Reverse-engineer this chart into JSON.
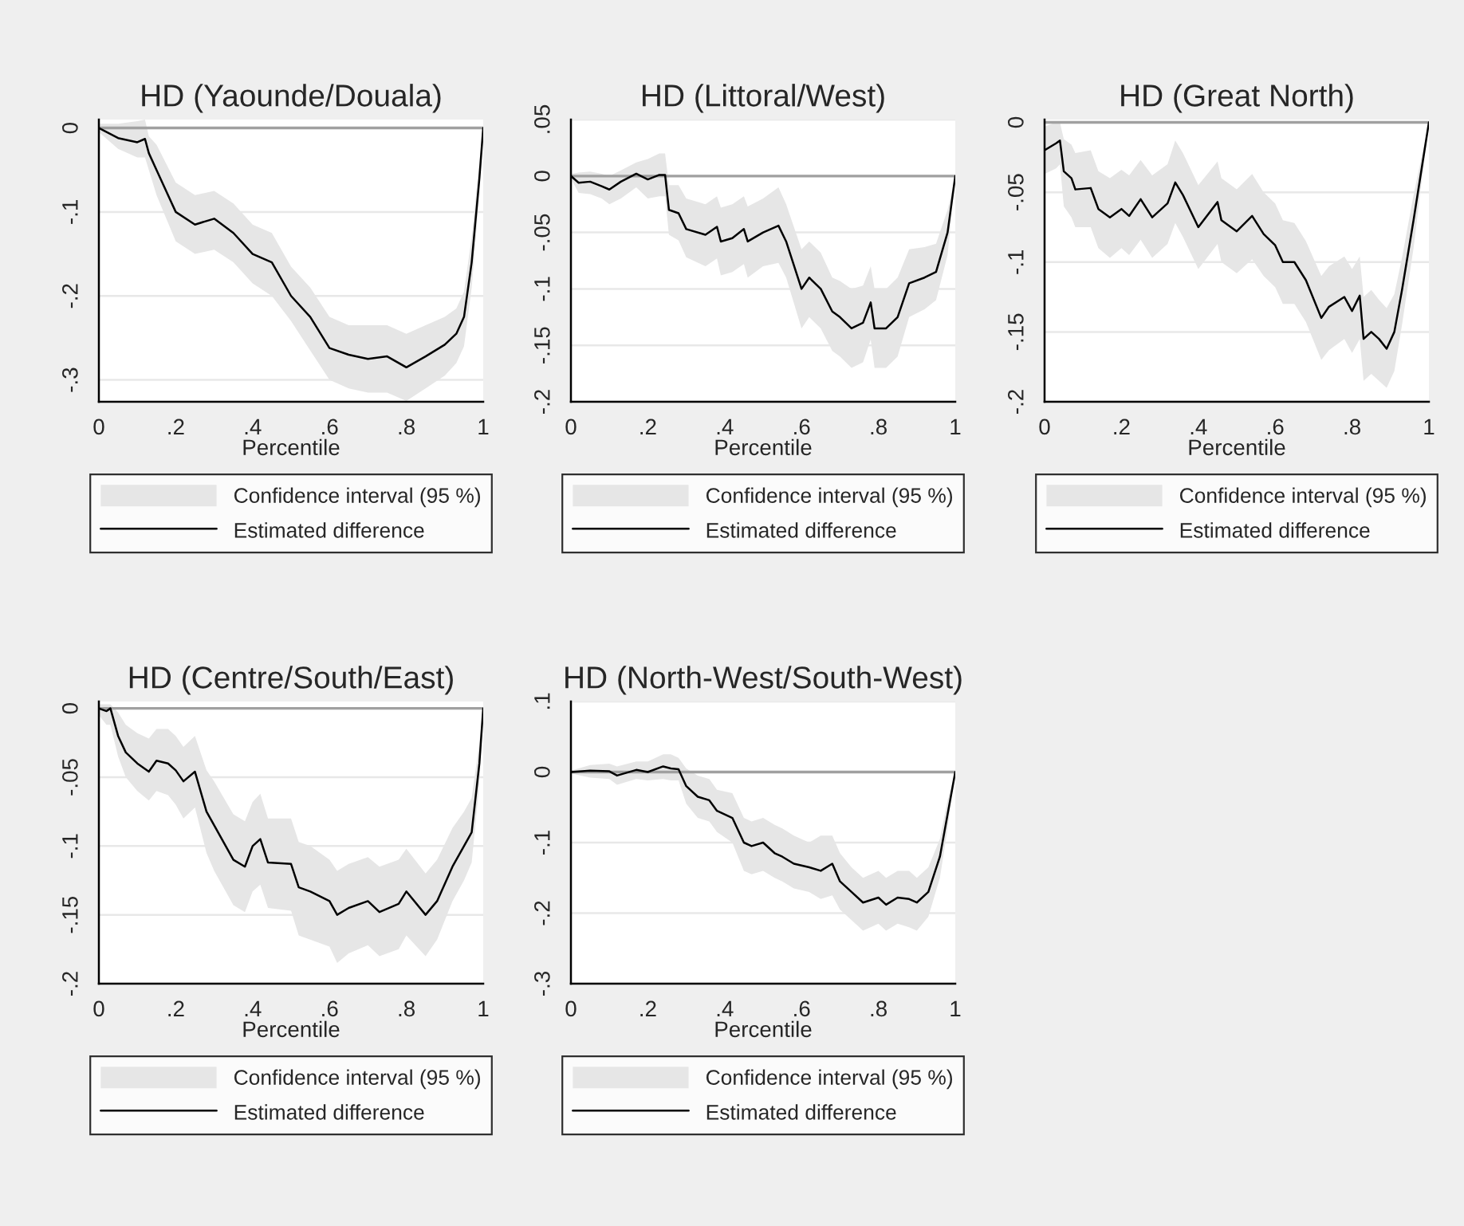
{
  "chart_data": [
    {
      "type": "line",
      "title": "HD (Yaounde/Douala)",
      "xlabel": "Percentile",
      "xlim": [
        0,
        1
      ],
      "ylim": [
        -0.326,
        0.01
      ],
      "xticks": [
        0,
        {
          "value": 0.2,
          "label": ".2"
        },
        {
          "value": 0.4,
          "label": ".4"
        },
        {
          "value": 0.6,
          "label": ".6"
        },
        {
          "value": 0.8,
          "label": ".8"
        },
        1
      ],
      "yticks": [
        0,
        {
          "value": -0.1,
          "label": "-.1"
        },
        {
          "value": -0.2,
          "label": "-.2"
        },
        {
          "value": -0.3,
          "label": "-.3"
        }
      ],
      "grid": "y",
      "legend": "bottom",
      "ref_lines": [
        {
          "axis": "y",
          "value": 0,
          "color": "#a0a0a0"
        }
      ],
      "annotations": [
        "Confidence interval (95 %)"
      ],
      "x": [
        0,
        0.05,
        0.1,
        0.12,
        0.13,
        0.15,
        0.2,
        0.25,
        0.3,
        0.35,
        0.4,
        0.45,
        0.5,
        0.55,
        0.6,
        0.65,
        0.7,
        0.75,
        0.8,
        0.85,
        0.9,
        0.93,
        0.95,
        0.97,
        0.99,
        1
      ],
      "series": [
        {
          "name": "Estimated difference",
          "color": "#000000",
          "upper": [
            0.005,
            0.005,
            0.008,
            0.01,
            -0.01,
            -0.02,
            -0.065,
            -0.08,
            -0.075,
            -0.09,
            -0.115,
            -0.125,
            -0.165,
            -0.19,
            -0.225,
            -0.235,
            -0.235,
            -0.235,
            -0.245,
            -0.235,
            -0.225,
            -0.215,
            -0.195,
            -0.13,
            -0.04,
            0
          ],
          "lower": [
            -0.005,
            -0.025,
            -0.035,
            -0.035,
            -0.05,
            -0.08,
            -0.135,
            -0.15,
            -0.145,
            -0.16,
            -0.185,
            -0.2,
            -0.23,
            -0.265,
            -0.3,
            -0.31,
            -0.315,
            -0.315,
            -0.325,
            -0.31,
            -0.295,
            -0.28,
            -0.26,
            -0.19,
            -0.08,
            0
          ],
          "values": [
            0,
            -0.012,
            -0.017,
            -0.013,
            -0.03,
            -0.05,
            -0.1,
            -0.115,
            -0.108,
            -0.125,
            -0.15,
            -0.16,
            -0.2,
            -0.225,
            -0.262,
            -0.27,
            -0.275,
            -0.272,
            -0.285,
            -0.272,
            -0.258,
            -0.245,
            -0.225,
            -0.16,
            -0.06,
            0
          ]
        }
      ]
    },
    {
      "type": "line",
      "title": "HD (Littoral/West)",
      "xlabel": "Percentile",
      "xlim": [
        0,
        1
      ],
      "ylim": [
        -0.2,
        0.05
      ],
      "xticks": [
        0,
        {
          "value": 0.2,
          "label": ".2"
        },
        {
          "value": 0.4,
          "label": ".4"
        },
        {
          "value": 0.6,
          "label": ".6"
        },
        {
          "value": 0.8,
          "label": ".8"
        },
        1
      ],
      "yticks": [
        {
          "value": 0.05,
          "label": ".05"
        },
        0,
        {
          "value": -0.05,
          "label": "-.05"
        },
        {
          "value": -0.1,
          "label": "-.1"
        },
        {
          "value": -0.15,
          "label": "-.15"
        },
        {
          "value": -0.2,
          "label": "-.2"
        }
      ],
      "grid": "y",
      "legend": "bottom",
      "ref_lines": [
        {
          "axis": "y",
          "value": 0,
          "color": "#a0a0a0"
        }
      ],
      "annotations": [
        "Confidence interval (95 %)"
      ],
      "x": [
        0,
        0.02,
        0.05,
        0.08,
        0.1,
        0.13,
        0.17,
        0.2,
        0.23,
        0.245,
        0.255,
        0.28,
        0.3,
        0.35,
        0.38,
        0.39,
        0.42,
        0.45,
        0.46,
        0.5,
        0.54,
        0.56,
        0.6,
        0.62,
        0.65,
        0.68,
        0.7,
        0.73,
        0.76,
        0.78,
        0.79,
        0.82,
        0.85,
        0.88,
        0.92,
        0.95,
        0.98,
        1
      ],
      "series": [
        {
          "name": "Estimated difference",
          "color": "#000000",
          "upper": [
            0.002,
            0.003,
            0.004,
            0.002,
            0.0,
            0.005,
            0.012,
            0.015,
            0.02,
            0.02,
            -0.008,
            -0.008,
            -0.02,
            -0.025,
            -0.018,
            -0.028,
            -0.025,
            -0.018,
            -0.027,
            -0.02,
            -0.01,
            -0.025,
            -0.065,
            -0.058,
            -0.068,
            -0.09,
            -0.093,
            -0.1,
            -0.097,
            -0.08,
            -0.1,
            -0.1,
            -0.09,
            -0.065,
            -0.063,
            -0.06,
            -0.03,
            0
          ],
          "lower": [
            -0.002,
            -0.015,
            -0.016,
            -0.02,
            -0.025,
            -0.02,
            -0.01,
            -0.02,
            -0.018,
            -0.018,
            -0.052,
            -0.057,
            -0.072,
            -0.08,
            -0.073,
            -0.088,
            -0.085,
            -0.078,
            -0.09,
            -0.08,
            -0.077,
            -0.09,
            -0.135,
            -0.125,
            -0.135,
            -0.155,
            -0.16,
            -0.17,
            -0.165,
            -0.145,
            -0.17,
            -0.17,
            -0.16,
            -0.125,
            -0.118,
            -0.11,
            -0.07,
            0
          ],
          "values": [
            0,
            -0.006,
            -0.005,
            -0.009,
            -0.012,
            -0.005,
            0.002,
            -0.003,
            0.001,
            0.001,
            -0.03,
            -0.033,
            -0.047,
            -0.052,
            -0.045,
            -0.058,
            -0.055,
            -0.047,
            -0.058,
            -0.05,
            -0.044,
            -0.058,
            -0.1,
            -0.09,
            -0.1,
            -0.12,
            -0.125,
            -0.135,
            -0.13,
            -0.112,
            -0.135,
            -0.135,
            -0.125,
            -0.095,
            -0.09,
            -0.085,
            -0.05,
            0
          ]
        }
      ]
    },
    {
      "type": "line",
      "title": "HD (Great North)",
      "xlabel": "Percentile",
      "xlim": [
        0,
        1
      ],
      "ylim": [
        -0.2,
        0.002
      ],
      "xticks": [
        0,
        {
          "value": 0.2,
          "label": ".2"
        },
        {
          "value": 0.4,
          "label": ".4"
        },
        {
          "value": 0.6,
          "label": ".6"
        },
        {
          "value": 0.8,
          "label": ".8"
        },
        1
      ],
      "yticks": [
        0,
        {
          "value": -0.05,
          "label": "-.05"
        },
        {
          "value": -0.1,
          "label": "-.1"
        },
        {
          "value": -0.15,
          "label": "-.15"
        },
        {
          "value": -0.2,
          "label": "-.2"
        }
      ],
      "grid": "y",
      "legend": "bottom",
      "ref_lines": [
        {
          "axis": "y",
          "value": 0,
          "color": "#a0a0a0"
        }
      ],
      "annotations": [
        "Confidence interval (95 %)"
      ],
      "x": [
        0,
        0.03,
        0.04,
        0.05,
        0.07,
        0.08,
        0.12,
        0.14,
        0.17,
        0.2,
        0.22,
        0.25,
        0.28,
        0.32,
        0.34,
        0.36,
        0.4,
        0.45,
        0.46,
        0.5,
        0.54,
        0.57,
        0.6,
        0.62,
        0.65,
        0.68,
        0.72,
        0.74,
        0.78,
        0.8,
        0.82,
        0.83,
        0.85,
        0.87,
        0.89,
        0.91,
        0.93,
        0.96,
        1
      ],
      "series": [
        {
          "name": "Estimated difference",
          "color": "#000000",
          "upper": [
            -0.003,
            0,
            0,
            -0.012,
            -0.016,
            -0.022,
            -0.02,
            -0.035,
            -0.04,
            -0.034,
            -0.038,
            -0.027,
            -0.038,
            -0.03,
            -0.013,
            -0.022,
            -0.045,
            -0.028,
            -0.04,
            -0.048,
            -0.037,
            -0.05,
            -0.058,
            -0.07,
            -0.072,
            -0.085,
            -0.11,
            -0.103,
            -0.096,
            -0.105,
            -0.096,
            -0.125,
            -0.12,
            -0.127,
            -0.133,
            -0.123,
            -0.097,
            -0.052,
            0
          ],
          "lower": [
            -0.037,
            -0.033,
            -0.03,
            -0.06,
            -0.068,
            -0.075,
            -0.075,
            -0.09,
            -0.097,
            -0.09,
            -0.095,
            -0.084,
            -0.097,
            -0.087,
            -0.072,
            -0.082,
            -0.105,
            -0.087,
            -0.1,
            -0.108,
            -0.098,
            -0.11,
            -0.118,
            -0.13,
            -0.13,
            -0.143,
            -0.17,
            -0.163,
            -0.155,
            -0.165,
            -0.155,
            -0.185,
            -0.18,
            -0.185,
            -0.19,
            -0.178,
            -0.145,
            -0.09,
            0
          ],
          "values": [
            -0.02,
            -0.015,
            -0.013,
            -0.035,
            -0.04,
            -0.048,
            -0.047,
            -0.062,
            -0.068,
            -0.062,
            -0.067,
            -0.055,
            -0.068,
            -0.058,
            -0.043,
            -0.052,
            -0.075,
            -0.057,
            -0.07,
            -0.078,
            -0.067,
            -0.08,
            -0.088,
            -0.1,
            -0.1,
            -0.113,
            -0.14,
            -0.132,
            -0.125,
            -0.135,
            -0.124,
            -0.155,
            -0.15,
            -0.155,
            -0.162,
            -0.15,
            -0.12,
            -0.07,
            0
          ]
        }
      ]
    },
    {
      "type": "line",
      "title": "HD (Centre/South/East)",
      "xlabel": "Percentile",
      "xlim": [
        0,
        1
      ],
      "ylim": [
        -0.2,
        0.005
      ],
      "xticks": [
        0,
        {
          "value": 0.2,
          "label": ".2"
        },
        {
          "value": 0.4,
          "label": ".4"
        },
        {
          "value": 0.6,
          "label": ".6"
        },
        {
          "value": 0.8,
          "label": ".8"
        },
        1
      ],
      "yticks": [
        0,
        {
          "value": -0.05,
          "label": "-.05"
        },
        {
          "value": -0.1,
          "label": "-.1"
        },
        {
          "value": -0.15,
          "label": "-.15"
        },
        {
          "value": -0.2,
          "label": "-.2"
        }
      ],
      "grid": "y",
      "legend": "bottom",
      "ref_lines": [
        {
          "axis": "y",
          "value": 0,
          "color": "#a0a0a0"
        }
      ],
      "annotations": [
        "Confidence interval (95 %)"
      ],
      "x": [
        0,
        0.02,
        0.03,
        0.05,
        0.07,
        0.1,
        0.13,
        0.15,
        0.18,
        0.2,
        0.22,
        0.25,
        0.28,
        0.3,
        0.35,
        0.38,
        0.4,
        0.42,
        0.44,
        0.5,
        0.52,
        0.55,
        0.6,
        0.62,
        0.65,
        0.7,
        0.73,
        0.78,
        0.8,
        0.85,
        0.88,
        0.92,
        0.95,
        0.97,
        0.99,
        1
      ],
      "series": [
        {
          "name": "Estimated difference",
          "color": "#000000",
          "upper": [
            0.003,
            0.003,
            0.003,
            -0.003,
            -0.012,
            -0.018,
            -0.022,
            -0.015,
            -0.015,
            -0.02,
            -0.028,
            -0.02,
            -0.045,
            -0.053,
            -0.077,
            -0.082,
            -0.068,
            -0.062,
            -0.08,
            -0.08,
            -0.097,
            -0.1,
            -0.11,
            -0.118,
            -0.113,
            -0.108,
            -0.115,
            -0.11,
            -0.102,
            -0.12,
            -0.11,
            -0.087,
            -0.075,
            -0.065,
            -0.025,
            0
          ],
          "lower": [
            -0.005,
            -0.012,
            -0.012,
            -0.035,
            -0.05,
            -0.06,
            -0.067,
            -0.06,
            -0.063,
            -0.07,
            -0.08,
            -0.072,
            -0.105,
            -0.118,
            -0.143,
            -0.148,
            -0.133,
            -0.128,
            -0.145,
            -0.147,
            -0.165,
            -0.168,
            -0.173,
            -0.185,
            -0.178,
            -0.172,
            -0.18,
            -0.175,
            -0.165,
            -0.18,
            -0.168,
            -0.14,
            -0.125,
            -0.112,
            -0.055,
            0
          ],
          "values": [
            0,
            -0.002,
            0,
            -0.02,
            -0.032,
            -0.04,
            -0.046,
            -0.038,
            -0.04,
            -0.045,
            -0.053,
            -0.046,
            -0.075,
            -0.085,
            -0.11,
            -0.115,
            -0.1,
            -0.095,
            -0.112,
            -0.113,
            -0.13,
            -0.133,
            -0.14,
            -0.15,
            -0.145,
            -0.14,
            -0.148,
            -0.142,
            -0.133,
            -0.15,
            -0.14,
            -0.115,
            -0.1,
            -0.09,
            -0.04,
            0
          ]
        }
      ]
    },
    {
      "type": "line",
      "title": "HD (North-West/South-West)",
      "xlabel": "Percentile",
      "xlim": [
        0,
        1
      ],
      "ylim": [
        -0.3,
        0.1
      ],
      "xticks": [
        0,
        {
          "value": 0.2,
          "label": ".2"
        },
        {
          "value": 0.4,
          "label": ".4"
        },
        {
          "value": 0.6,
          "label": ".6"
        },
        {
          "value": 0.8,
          "label": ".8"
        },
        1
      ],
      "yticks": [
        {
          "value": 0.1,
          "label": ".1"
        },
        0,
        {
          "value": -0.1,
          "label": "-.1"
        },
        {
          "value": -0.2,
          "label": "-.2"
        },
        {
          "value": -0.3,
          "label": "-.3"
        }
      ],
      "grid": "y",
      "legend": "bottom",
      "ref_lines": [
        {
          "axis": "y",
          "value": 0,
          "color": "#a0a0a0"
        }
      ],
      "annotations": [
        "Confidence interval (95 %)"
      ],
      "x": [
        0,
        0.05,
        0.1,
        0.12,
        0.17,
        0.2,
        0.24,
        0.26,
        0.28,
        0.3,
        0.33,
        0.36,
        0.38,
        0.42,
        0.45,
        0.47,
        0.5,
        0.53,
        0.55,
        0.58,
        0.62,
        0.65,
        0.68,
        0.7,
        0.73,
        0.76,
        0.8,
        0.82,
        0.85,
        0.88,
        0.9,
        0.93,
        0.96,
        0.98,
        1
      ],
      "series": [
        {
          "name": "Estimated difference",
          "color": "#000000",
          "upper": [
            0.002,
            0.01,
            0.012,
            0.008,
            0.015,
            0.015,
            0.025,
            0.025,
            0.02,
            0.005,
            -0.005,
            -0.01,
            -0.025,
            -0.03,
            -0.065,
            -0.07,
            -0.065,
            -0.075,
            -0.08,
            -0.09,
            -0.1,
            -0.09,
            -0.09,
            -0.115,
            -0.135,
            -0.15,
            -0.14,
            -0.15,
            -0.14,
            -0.14,
            -0.15,
            -0.135,
            -0.095,
            -0.04,
            0
          ],
          "lower": [
            -0.002,
            -0.008,
            -0.01,
            -0.018,
            -0.01,
            -0.012,
            -0.01,
            -0.012,
            -0.012,
            -0.045,
            -0.065,
            -0.07,
            -0.085,
            -0.1,
            -0.14,
            -0.145,
            -0.14,
            -0.15,
            -0.155,
            -0.165,
            -0.17,
            -0.18,
            -0.175,
            -0.195,
            -0.21,
            -0.225,
            -0.215,
            -0.225,
            -0.215,
            -0.22,
            -0.225,
            -0.205,
            -0.15,
            -0.08,
            0
          ],
          "values": [
            0,
            0.002,
            0.001,
            -0.005,
            0.003,
            0,
            0.008,
            0.005,
            0.004,
            -0.02,
            -0.035,
            -0.04,
            -0.055,
            -0.065,
            -0.1,
            -0.105,
            -0.1,
            -0.115,
            -0.12,
            -0.13,
            -0.135,
            -0.14,
            -0.13,
            -0.155,
            -0.17,
            -0.185,
            -0.178,
            -0.188,
            -0.178,
            -0.18,
            -0.185,
            -0.17,
            -0.12,
            -0.06,
            0
          ]
        }
      ]
    }
  ]
}
